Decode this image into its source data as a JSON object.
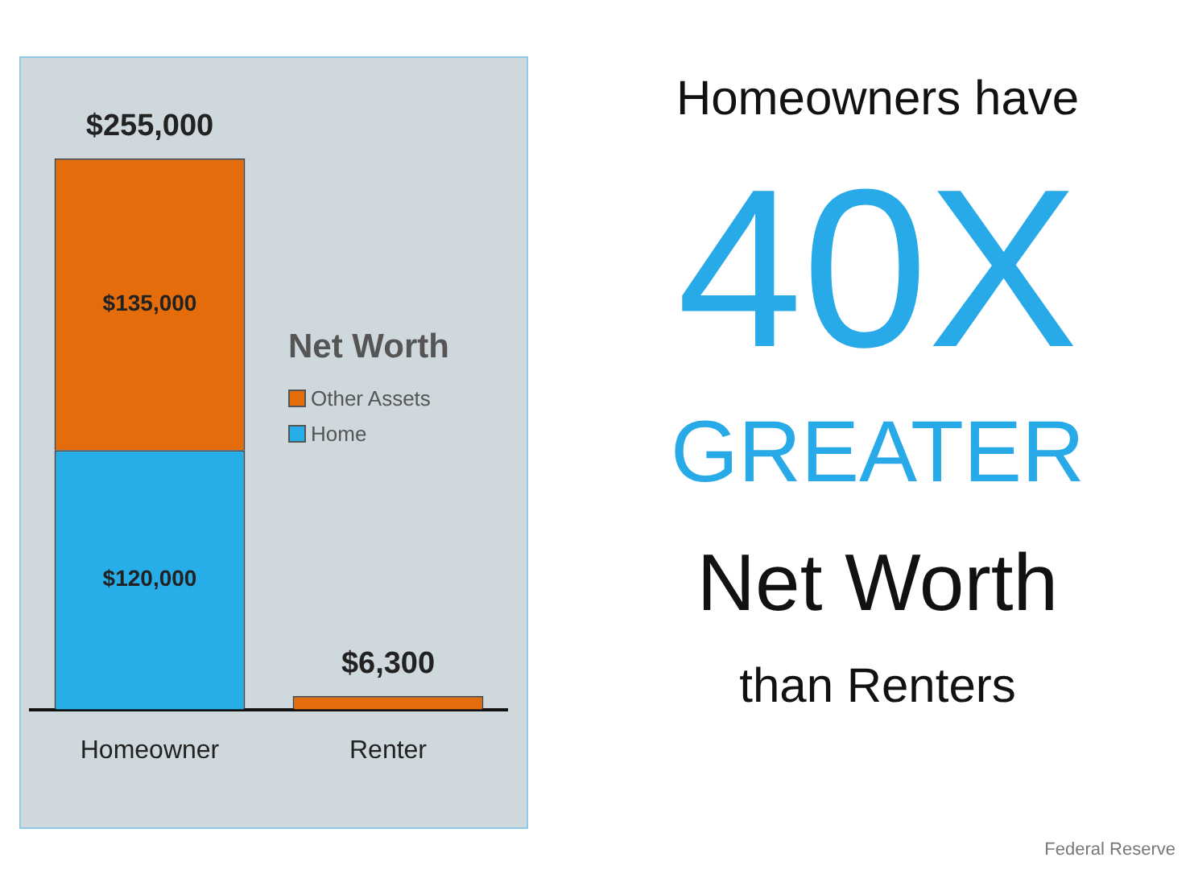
{
  "chart_data": {
    "type": "bar",
    "stacked": true,
    "categories": [
      "Homeowner",
      "Renter"
    ],
    "series": [
      {
        "name": "Home",
        "color": "#27aee9",
        "values": [
          120000,
          0
        ],
        "value_labels": [
          "$120,000",
          null
        ]
      },
      {
        "name": "Other Assets",
        "color": "#e46c0a",
        "values": [
          135000,
          6300
        ],
        "value_labels": [
          "$135,000",
          null
        ]
      }
    ],
    "totals": [
      "$255,000",
      "$6,300"
    ],
    "tick_labels": "x",
    "grid": false,
    "legend": "right",
    "legend_title": "Net Worth",
    "annotations": [
      "Homeowners have",
      "40X",
      "GREATER",
      "Net Worth",
      "than Renters",
      "Federal Reserve"
    ]
  }
}
